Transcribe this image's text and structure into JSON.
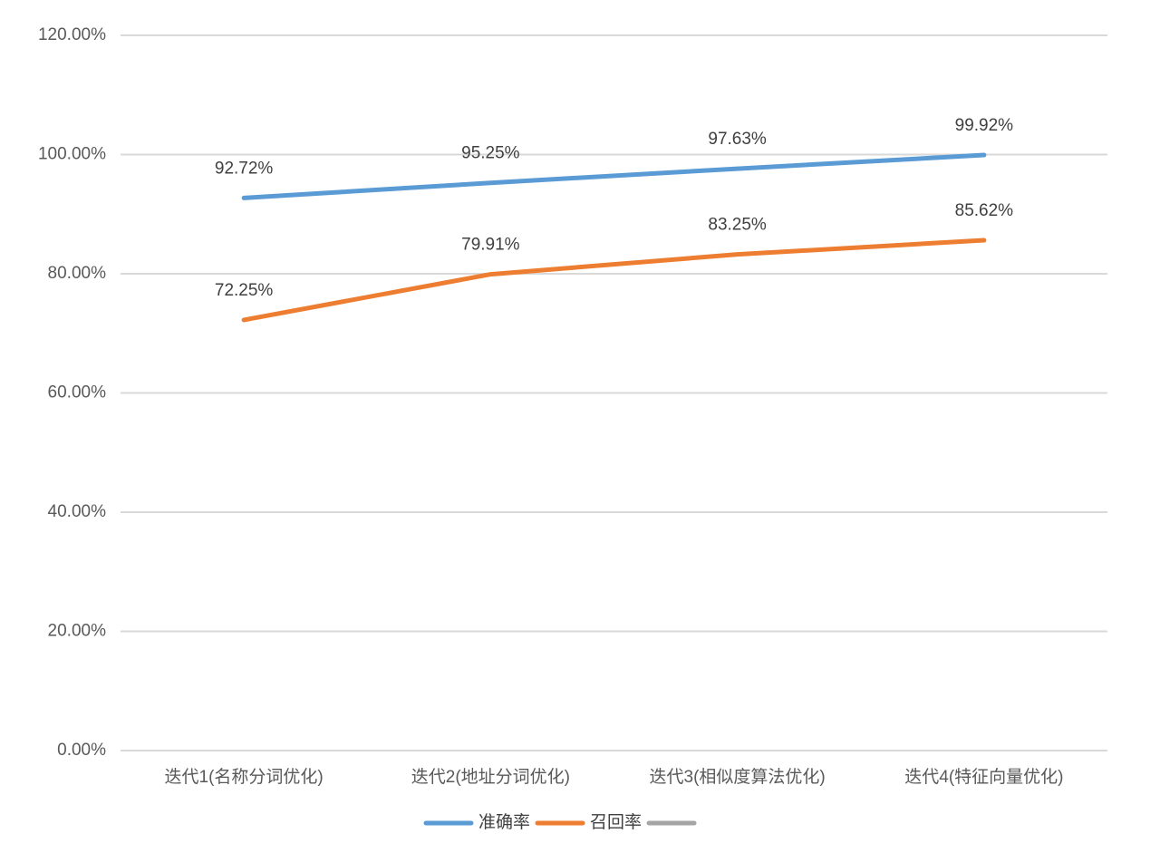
{
  "chart_data": {
    "type": "line",
    "categories": [
      "迭代1(名称分词优化)",
      "迭代2(地址分词优化)",
      "迭代3(相似度算法优化)",
      "迭代4(特征向量优化)"
    ],
    "series": [
      {
        "name": "准确率",
        "color": "#5b9bd5",
        "values": [
          92.72,
          95.25,
          97.63,
          99.92
        ],
        "value_labels": [
          "92.72%",
          "95.25%",
          "97.63%",
          "99.92%"
        ]
      },
      {
        "name": "召回率",
        "color": "#ed7d31",
        "values": [
          72.25,
          79.91,
          83.25,
          85.62
        ],
        "value_labels": [
          "72.25%",
          "79.91%",
          "83.25%",
          "85.62%"
        ]
      },
      {
        "color": "#a5a5a5",
        "values": [
          null,
          null,
          null,
          null
        ]
      }
    ],
    "ylim": [
      0,
      120
    ],
    "yticks": [
      {
        "value": 0,
        "label": "0.00%"
      },
      {
        "value": 20,
        "label": "20.00%"
      },
      {
        "value": 40,
        "label": "40.00%"
      },
      {
        "value": 60,
        "label": "60.00%"
      },
      {
        "value": 80,
        "label": "80.00%"
      },
      {
        "value": 100,
        "label": "100.00%"
      },
      {
        "value": 120,
        "label": "120.00%"
      }
    ],
    "grid": true,
    "legend": "bottom"
  }
}
